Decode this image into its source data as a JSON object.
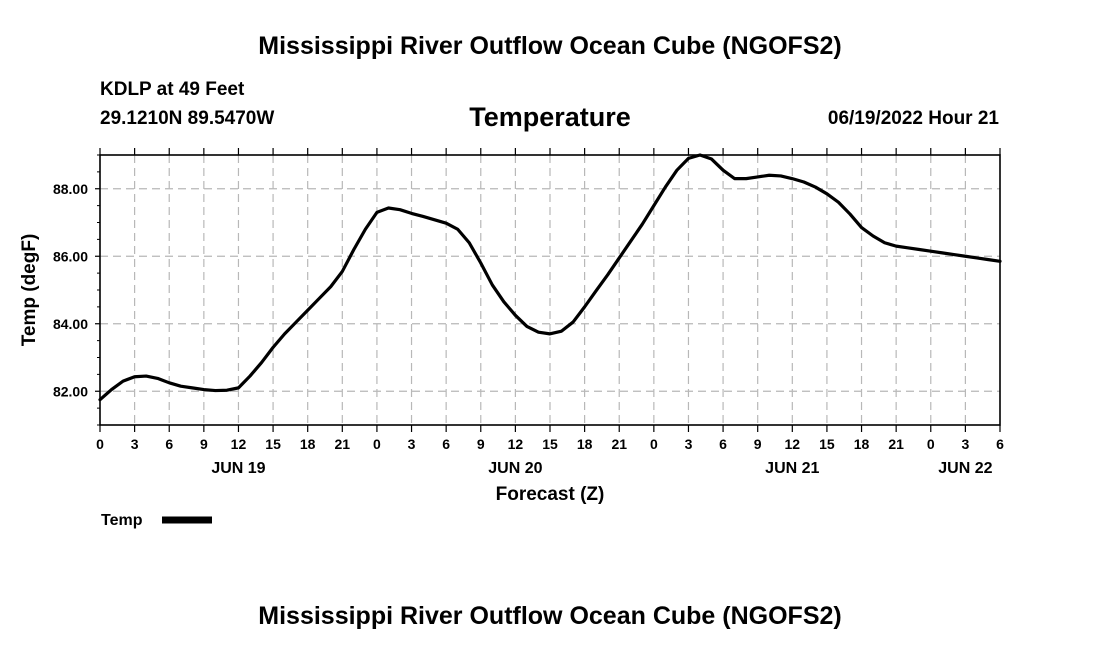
{
  "header": {
    "title": "Mississippi River Outflow Ocean Cube (NGOFS2)",
    "station_name": "KDLP at 49 Feet",
    "coordinates": "29.1210N  89.5470W",
    "variable": "Temperature",
    "timestamp": "06/19/2022 Hour 21"
  },
  "footer": {
    "title": "Mississippi River Outflow Ocean Cube (NGOFS2)"
  },
  "colors": {
    "line": "#000000",
    "grid": "#b8b8b8",
    "background": "#ffffff"
  },
  "chart_data": {
    "type": "line",
    "title": "Temperature",
    "xlabel": "Forecast (Z)",
    "ylabel": "Temp (degF)",
    "xlim": [
      0,
      78
    ],
    "ylim": [
      81,
      89
    ],
    "x_ticks": [
      0,
      3,
      6,
      9,
      12,
      15,
      18,
      21,
      24,
      27,
      30,
      33,
      36,
      39,
      42,
      45,
      48,
      51,
      54,
      57,
      60,
      63,
      66,
      69,
      72,
      75,
      78
    ],
    "x_tick_labels": [
      "0",
      "3",
      "6",
      "9",
      "12",
      "15",
      "18",
      "21",
      "0",
      "3",
      "6",
      "9",
      "12",
      "15",
      "18",
      "21",
      "0",
      "3",
      "6",
      "9",
      "12",
      "15",
      "18",
      "21",
      "0",
      "3",
      "6"
    ],
    "date_labels": [
      {
        "x": 12,
        "label": "JUN 19"
      },
      {
        "x": 36,
        "label": "JUN 20"
      },
      {
        "x": 60,
        "label": "JUN 21"
      },
      {
        "x": 75,
        "label": "JUN 22"
      }
    ],
    "y_ticks": [
      82,
      84,
      86,
      88
    ],
    "y_tick_labels": [
      "82.00",
      "84.00",
      "86.00",
      "88.00"
    ],
    "grid": true,
    "legend_position": "bottom-left",
    "series": [
      {
        "name": "Temp",
        "x": [
          0,
          1,
          2,
          3,
          4,
          5,
          6,
          7,
          8,
          9,
          10,
          11,
          12,
          13,
          14,
          15,
          16,
          17,
          18,
          19,
          20,
          21,
          22,
          23,
          24,
          25,
          26,
          27,
          28,
          29,
          30,
          31,
          32,
          33,
          34,
          35,
          36,
          37,
          38,
          39,
          40,
          41,
          42,
          43,
          44,
          45,
          46,
          47,
          48,
          49,
          50,
          51,
          52,
          53,
          54,
          55,
          56,
          57,
          58,
          59,
          60,
          61,
          62,
          63,
          64,
          65,
          66,
          67,
          68,
          69,
          70,
          71,
          72,
          73,
          74,
          75,
          76,
          77,
          78
        ],
        "values": [
          81.75,
          82.05,
          82.3,
          82.43,
          82.45,
          82.38,
          82.25,
          82.15,
          82.1,
          82.05,
          82.02,
          82.03,
          82.1,
          82.45,
          82.85,
          83.3,
          83.7,
          84.05,
          84.4,
          84.75,
          85.1,
          85.55,
          86.2,
          86.8,
          87.3,
          87.43,
          87.38,
          87.27,
          87.18,
          87.08,
          86.98,
          86.8,
          86.4,
          85.8,
          85.15,
          84.65,
          84.25,
          83.92,
          83.75,
          83.7,
          83.78,
          84.05,
          84.5,
          84.98,
          85.45,
          85.95,
          86.45,
          86.95,
          87.5,
          88.05,
          88.55,
          88.9,
          89.0,
          88.88,
          88.55,
          88.3,
          88.3,
          88.35,
          88.4,
          88.38,
          88.3,
          88.2,
          88.05,
          87.85,
          87.6,
          87.25,
          86.85,
          86.6,
          86.4,
          86.3,
          86.25,
          86.2,
          86.15,
          86.1,
          86.05,
          86.0,
          85.95,
          85.9,
          85.85
        ]
      }
    ]
  },
  "legend": {
    "label": "Temp"
  }
}
